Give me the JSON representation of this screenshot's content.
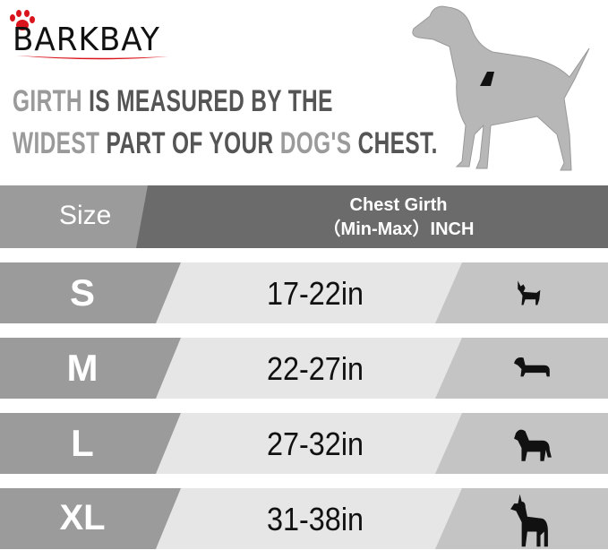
{
  "brand": {
    "logo_text": "BARKBAY",
    "paw_color": "#d9141c"
  },
  "headline": {
    "line1": [
      {
        "text": "GIRTH ",
        "tone": "light"
      },
      {
        "text": "IS ",
        "tone": "dark"
      },
      {
        "text": "MEASURED BY THE",
        "tone": "dark"
      }
    ],
    "line2": [
      {
        "text": "WIDEST ",
        "tone": "light"
      },
      {
        "text": "PART OF YOUR ",
        "tone": "dark"
      },
      {
        "text": "DOG'S ",
        "tone": "light"
      },
      {
        "text": "CHEST.",
        "tone": "dark"
      }
    ]
  },
  "table": {
    "header": {
      "size": "Size",
      "girth_line1": "Chest Girth",
      "girth_line2": "（Min-Max）INCH"
    },
    "rows": [
      {
        "size": "S",
        "range": "17-22in",
        "icon": "chihuahua-icon"
      },
      {
        "size": "M",
        "range": "22-27in",
        "icon": "dachshund-icon"
      },
      {
        "size": "L",
        "range": "27-32in",
        "icon": "labrador-icon"
      },
      {
        "size": "XL",
        "range": "31-38in",
        "icon": "great-dane-icon"
      }
    ],
    "colors": {
      "size_cell": "#9b9b9b",
      "range_cell": "#e6e6e6",
      "icon_cell": "#c4c4c4",
      "header_dark": "#6b6b6b"
    }
  }
}
